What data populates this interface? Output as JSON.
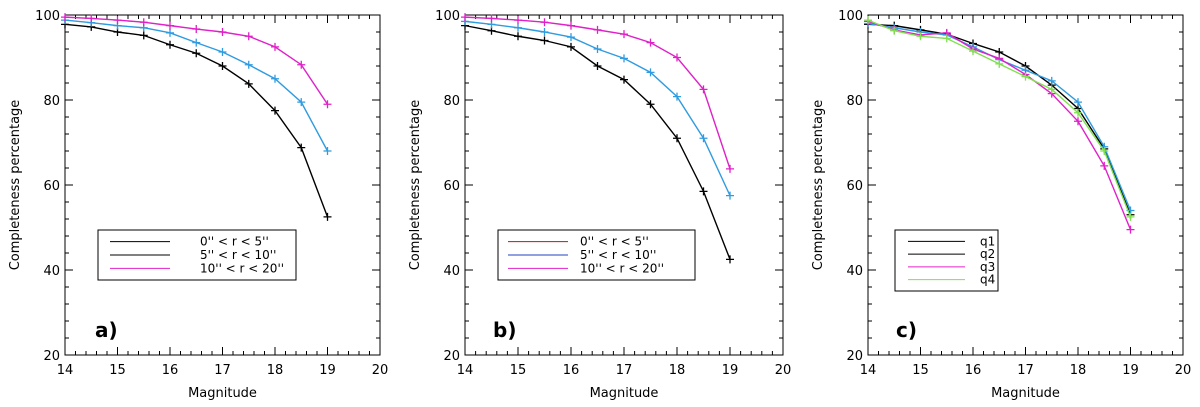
{
  "chart_data": [
    {
      "type": "line",
      "panel_label": "a)",
      "xlabel": "Magnitude",
      "ylabel": "Completeness percentage",
      "xlim": [
        14,
        20
      ],
      "ylim": [
        20,
        100
      ],
      "xticks": [
        14,
        15,
        16,
        17,
        18,
        19,
        20
      ],
      "yticks": [
        20,
        40,
        60,
        80,
        100
      ],
      "x": [
        14,
        14.5,
        15,
        15.5,
        16,
        16.5,
        17,
        17.5,
        18,
        18.5,
        19
      ],
      "legend_position": "middle-left",
      "series": [
        {
          "name": "0'' < r < 5''",
          "line_color": "#000000",
          "legend_color": "#000000",
          "values": [
            97.8,
            97.2,
            96.0,
            95.2,
            93.0,
            91.0,
            88.0,
            83.8,
            77.5,
            68.8,
            52.5
          ]
        },
        {
          "name": "5'' < r < 10''",
          "line_color": "#2f9be0",
          "legend_color": "#000000",
          "values": [
            98.8,
            98.2,
            97.5,
            97.0,
            95.8,
            93.5,
            91.3,
            88.3,
            85.0,
            79.5,
            68.0
          ]
        },
        {
          "name": "10'' < r < 20''",
          "line_color": "#e020c8",
          "legend_color": "#e020c8",
          "values": [
            99.5,
            99.2,
            98.8,
            98.3,
            97.5,
            96.7,
            96.0,
            95.0,
            92.5,
            88.3,
            79.0
          ]
        }
      ]
    },
    {
      "type": "line",
      "panel_label": "b)",
      "xlabel": "Magnitude",
      "ylabel": "Completeness percentage",
      "xlim": [
        14,
        20
      ],
      "ylim": [
        20,
        100
      ],
      "xticks": [
        14,
        15,
        16,
        17,
        18,
        19,
        20
      ],
      "yticks": [
        20,
        40,
        60,
        80,
        100
      ],
      "x": [
        14,
        14.5,
        15,
        15.5,
        16,
        16.5,
        17,
        17.5,
        18,
        18.5,
        19
      ],
      "legend_position": "middle-left",
      "series": [
        {
          "name": "0'' < r < 5''",
          "line_color": "#000000",
          "legend_color": "#c01020",
          "values": [
            97.5,
            96.3,
            95.0,
            94.0,
            92.5,
            88.0,
            84.8,
            79.0,
            71.0,
            58.5,
            42.5
          ]
        },
        {
          "name": "5'' < r < 10''",
          "line_color": "#2f9be0",
          "legend_color": "#2040c0",
          "values": [
            98.5,
            97.8,
            97.0,
            96.0,
            94.8,
            92.0,
            89.8,
            86.5,
            80.8,
            71.0,
            57.5
          ]
        },
        {
          "name": "10'' < r < 20''",
          "line_color": "#e020c8",
          "legend_color": "#e020c8",
          "values": [
            99.5,
            99.2,
            98.8,
            98.3,
            97.5,
            96.5,
            95.5,
            93.5,
            90.0,
            82.5,
            63.8
          ]
        }
      ]
    },
    {
      "type": "line",
      "panel_label": "c)",
      "xlabel": "Magnitude",
      "ylabel": "Completeness percentage",
      "xlim": [
        14,
        20
      ],
      "ylim": [
        20,
        100
      ],
      "xticks": [
        14,
        15,
        16,
        17,
        18,
        19,
        20
      ],
      "yticks": [
        20,
        40,
        60,
        80,
        100
      ],
      "x": [
        14,
        14.5,
        15,
        15.5,
        16,
        16.5,
        17,
        17.5,
        18,
        18.5,
        19
      ],
      "legend_position": "middle-left",
      "series": [
        {
          "name": "q1",
          "line_color": "#000000",
          "legend_color": "#000000",
          "values": [
            97.8,
            97.5,
            96.5,
            95.5,
            93.3,
            91.3,
            88.0,
            83.5,
            78.0,
            68.5,
            53.0
          ]
        },
        {
          "name": "q2",
          "line_color": "#2f9be0",
          "legend_color": "#000000",
          "values": [
            98.0,
            97.0,
            96.0,
            95.3,
            92.5,
            89.5,
            87.0,
            84.5,
            79.5,
            69.0,
            54.0
          ]
        },
        {
          "name": "q3",
          "line_color": "#e020c8",
          "legend_color": "#e020c8",
          "values": [
            98.5,
            96.5,
            95.3,
            95.8,
            92.0,
            89.8,
            86.0,
            81.5,
            75.0,
            64.5,
            49.5
          ]
        },
        {
          "name": "q4",
          "line_color": "#80e050",
          "legend_color": "#80e050",
          "values": [
            98.8,
            96.3,
            95.0,
            94.5,
            91.5,
            88.5,
            85.5,
            82.5,
            77.0,
            68.0,
            52.5
          ]
        }
      ]
    }
  ]
}
